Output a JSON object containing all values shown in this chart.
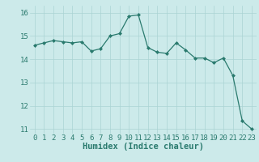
{
  "x": [
    0,
    1,
    2,
    3,
    4,
    5,
    6,
    7,
    8,
    9,
    10,
    11,
    12,
    13,
    14,
    15,
    16,
    17,
    18,
    19,
    20,
    21,
    22,
    23
  ],
  "y": [
    14.6,
    14.7,
    14.8,
    14.75,
    14.7,
    14.75,
    14.35,
    14.45,
    15.0,
    15.1,
    15.85,
    15.9,
    14.5,
    14.3,
    14.25,
    14.7,
    14.4,
    14.05,
    14.05,
    13.85,
    14.05,
    13.3,
    11.35,
    11.0
  ],
  "line_color": "#2a7a6e",
  "marker": "D",
  "marker_size": 2,
  "bg_color": "#cceaea",
  "grid_color": "#aad4d4",
  "xlabel": "Humidex (Indice chaleur)",
  "xlabel_fontsize": 7.5,
  "xlim": [
    -0.5,
    23.5
  ],
  "ylim": [
    10.8,
    16.3
  ],
  "yticks": [
    11,
    12,
    13,
    14,
    15,
    16
  ],
  "xticks": [
    0,
    1,
    2,
    3,
    4,
    5,
    6,
    7,
    8,
    9,
    10,
    11,
    12,
    13,
    14,
    15,
    16,
    17,
    18,
    19,
    20,
    21,
    22,
    23
  ],
  "tick_color": "#2a7a6e",
  "tick_fontsize": 6.5
}
